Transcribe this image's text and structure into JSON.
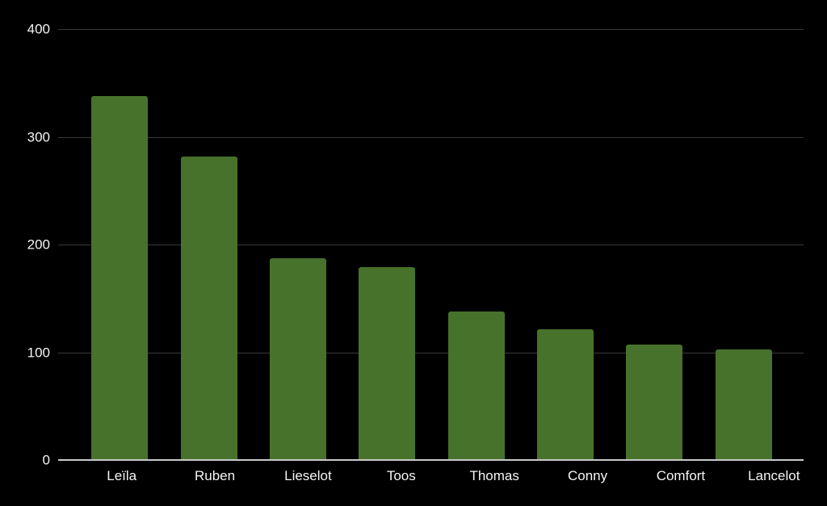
{
  "chart_data": {
    "type": "bar",
    "categories": [
      "Leïla",
      "Ruben",
      "Lieselot",
      "Toos",
      "Thomas",
      "Conny",
      "Comfort",
      "Lancelot"
    ],
    "values": [
      338,
      282,
      187,
      179,
      138,
      121,
      107,
      103
    ],
    "title": "",
    "xlabel": "",
    "ylabel": "",
    "ylim": [
      0,
      400
    ],
    "yticks": [
      0,
      100,
      200,
      300,
      400
    ],
    "grid": true,
    "legend": false,
    "colors": {
      "bar": "#47722b",
      "background": "#000000",
      "text": "#f5f5f5",
      "gridline": "#3a3a3a",
      "baseline": "#c8c8c8"
    }
  }
}
